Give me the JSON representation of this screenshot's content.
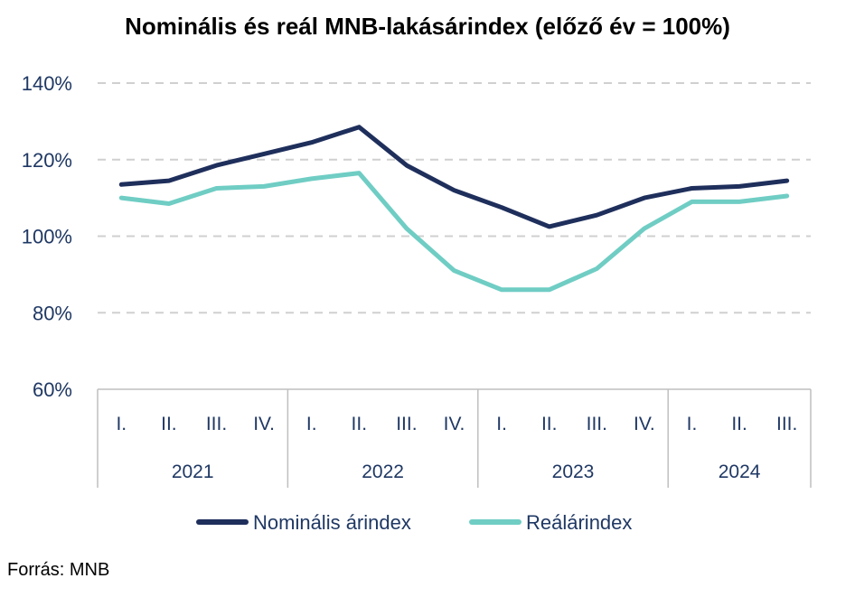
{
  "chart_data": {
    "type": "line",
    "title": "Nominális és reál MNB-lakásárindex (előző év = 100%)",
    "y_ticks": [
      "60%",
      "80%",
      "100%",
      "120%",
      "140%"
    ],
    "ylim": [
      60,
      140
    ],
    "grid": true,
    "legend_position": "bottom",
    "categories": [
      "I.",
      "II.",
      "III.",
      "IV.",
      "I.",
      "II.",
      "III.",
      "IV.",
      "I.",
      "II.",
      "III.",
      "IV.",
      "I.",
      "II.",
      "III."
    ],
    "years": [
      {
        "label": "2021",
        "quarters": 4
      },
      {
        "label": "2022",
        "quarters": 4
      },
      {
        "label": "2023",
        "quarters": 4
      },
      {
        "label": "2024",
        "quarters": 3
      }
    ],
    "series": [
      {
        "name": "Nominális árindex",
        "color": "#1f2f5c",
        "values": [
          113.5,
          114.5,
          118.5,
          121.5,
          124.5,
          128.5,
          118.5,
          112,
          107.5,
          102.5,
          105.5,
          110,
          112.5,
          113,
          114.5
        ]
      },
      {
        "name": "Reálárindex",
        "color": "#6fcdc4",
        "values": [
          110,
          108.5,
          112.5,
          113,
          115,
          116.5,
          102,
          91,
          86,
          86,
          91.5,
          102,
          109,
          109,
          110.5
        ]
      }
    ]
  },
  "source": "Forrás: MNB"
}
